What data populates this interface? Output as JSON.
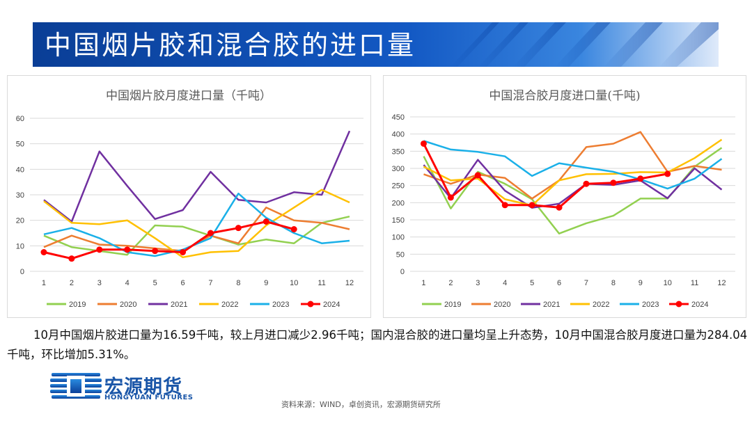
{
  "slide": {
    "title": "中国烟片胶和混合胶的进口量",
    "summary": "10月中国烟片胶进口量为16.59千吨，较上月进口减少2.96千吨；国内混合胶的进口量均呈上升态势，10月中国混合胶月度进口量为284.04千吨，环比增加5.31%。",
    "source": "资料来源：WIND，卓创资讯，宏源期货研究所",
    "logo_cn": "宏源期货",
    "logo_en": "HONGYUAN FUTURES"
  },
  "chart_data": [
    {
      "type": "line",
      "title": "中国烟片胶月度进口量（千吨）",
      "categories": [
        "1",
        "2",
        "3",
        "4",
        "5",
        "6",
        "7",
        "8",
        "9",
        "10",
        "11",
        "12"
      ],
      "ylim": [
        0,
        60
      ],
      "yticks": [
        0,
        10,
        20,
        30,
        40,
        50,
        60
      ],
      "grid": "horizontal",
      "legend_position": "bottom",
      "series": [
        {
          "name": "2019",
          "color": "#92d050",
          "values": [
            14,
            9.5,
            8,
            6.5,
            18,
            17.5,
            14,
            10.5,
            12.5,
            11,
            19,
            21.5
          ]
        },
        {
          "name": "2020",
          "color": "#ed7d31",
          "values": [
            9.5,
            14,
            10.5,
            10,
            9,
            8,
            14,
            11,
            25,
            20,
            19,
            16.5
          ]
        },
        {
          "name": "2021",
          "color": "#7030a0",
          "values": [
            28,
            19.5,
            47,
            33.5,
            20.5,
            24,
            39,
            28,
            27,
            31,
            30,
            55
          ]
        },
        {
          "name": "2022",
          "color": "#ffc000",
          "values": [
            27.5,
            19,
            18.5,
            20,
            13,
            5.5,
            7.5,
            8,
            18,
            25,
            32,
            27
          ]
        },
        {
          "name": "2023",
          "color": "#1ab0e8",
          "values": [
            14.5,
            17,
            13,
            7.5,
            6,
            8.5,
            13,
            30.5,
            21,
            15,
            11,
            12
          ]
        },
        {
          "name": "2024",
          "color": "#ff0000",
          "marker": true,
          "values": [
            7.5,
            5,
            8.5,
            8.5,
            8,
            7.5,
            15,
            17,
            19.5,
            16.5,
            null,
            null
          ]
        }
      ]
    },
    {
      "type": "line",
      "title": "中国混合胶月度进口量(千吨)",
      "categories": [
        "1",
        "2",
        "3",
        "4",
        "5",
        "6",
        "7",
        "8",
        "9",
        "10",
        "11",
        "12"
      ],
      "ylim": [
        0,
        450
      ],
      "yticks": [
        0,
        50,
        100,
        150,
        200,
        250,
        300,
        350,
        400,
        450
      ],
      "grid": "horizontal",
      "legend_position": "bottom",
      "series": [
        {
          "name": "2019",
          "color": "#92d050",
          "values": [
            335,
            183,
            290,
            255,
            210,
            110,
            140,
            162,
            212,
            212,
            305,
            360
          ]
        },
        {
          "name": "2020",
          "color": "#ed7d31",
          "values": [
            283,
            255,
            282,
            272,
            212,
            265,
            362,
            372,
            406,
            290,
            307,
            296
          ]
        },
        {
          "name": "2021",
          "color": "#7030a0",
          "values": [
            310,
            213,
            325,
            235,
            185,
            197,
            255,
            252,
            265,
            213,
            300,
            238
          ]
        },
        {
          "name": "2022",
          "color": "#ffc000",
          "values": [
            305,
            265,
            270,
            210,
            192,
            265,
            283,
            284,
            289,
            288,
            330,
            384
          ]
        },
        {
          "name": "2023",
          "color": "#1ab0e8",
          "values": [
            380,
            355,
            348,
            335,
            278,
            315,
            302,
            290,
            268,
            241,
            270,
            328
          ]
        },
        {
          "name": "2024",
          "color": "#ff0000",
          "marker": true,
          "values": [
            372,
            215,
            280,
            193,
            193,
            186,
            255,
            258,
            270,
            284,
            null,
            null
          ]
        }
      ]
    }
  ]
}
